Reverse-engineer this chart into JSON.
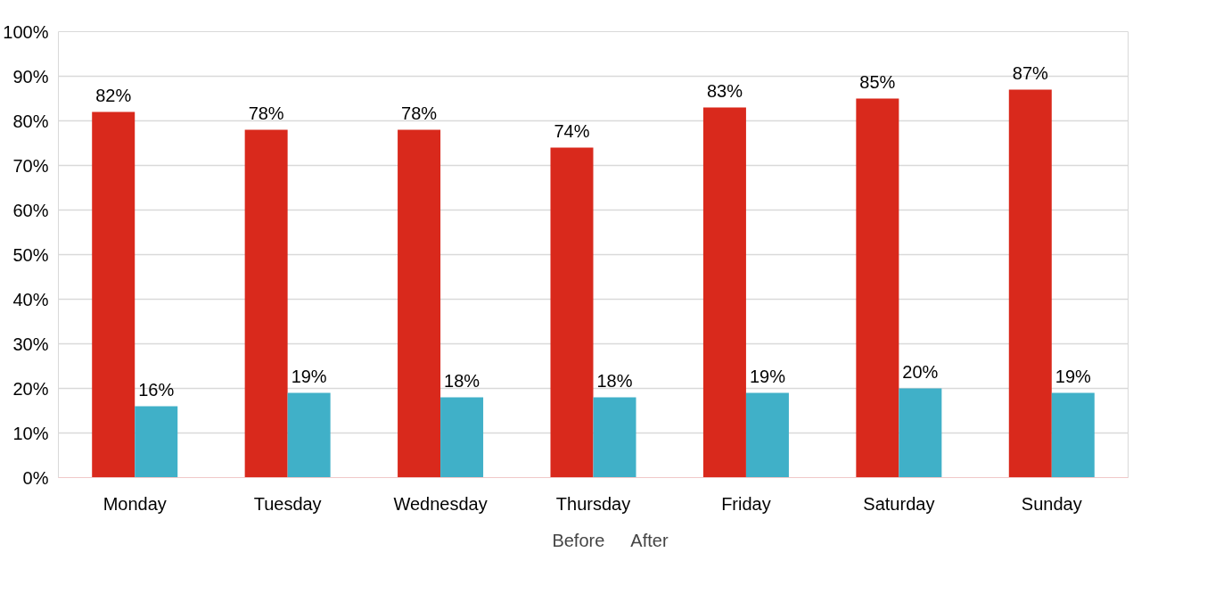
{
  "chart_data": {
    "type": "bar",
    "categories": [
      "Monday",
      "Tuesday",
      "Wednesday",
      "Thursday",
      "Friday",
      "Saturday",
      "Sunday"
    ],
    "series": [
      {
        "name": "Before",
        "color": "#d9291c",
        "values": [
          82,
          78,
          78,
          74,
          83,
          85,
          87
        ],
        "value_labels": [
          "82%",
          "78%",
          "78%",
          "74%",
          "83%",
          "85%",
          "87%"
        ]
      },
      {
        "name": "After",
        "color": "#40b0c8",
        "values": [
          16,
          19,
          18,
          18,
          19,
          20,
          19
        ],
        "value_labels": [
          "16%",
          "19%",
          "18%",
          "18%",
          "19%",
          "20%",
          "19%"
        ]
      }
    ],
    "ylim": [
      0,
      100
    ],
    "yticks": [
      {
        "value": 0,
        "label": "0%"
      },
      {
        "value": 10,
        "label": "10%"
      },
      {
        "value": 20,
        "label": "20%"
      },
      {
        "value": 30,
        "label": "30%"
      },
      {
        "value": 40,
        "label": "40%"
      },
      {
        "value": 50,
        "label": "50%"
      },
      {
        "value": 60,
        "label": "60%"
      },
      {
        "value": 70,
        "label": "70%"
      },
      {
        "value": 80,
        "label": "80%"
      },
      {
        "value": 90,
        "label": "90%"
      },
      {
        "value": 100,
        "label": "100%"
      }
    ],
    "grid": "y",
    "legend": "bottom"
  }
}
